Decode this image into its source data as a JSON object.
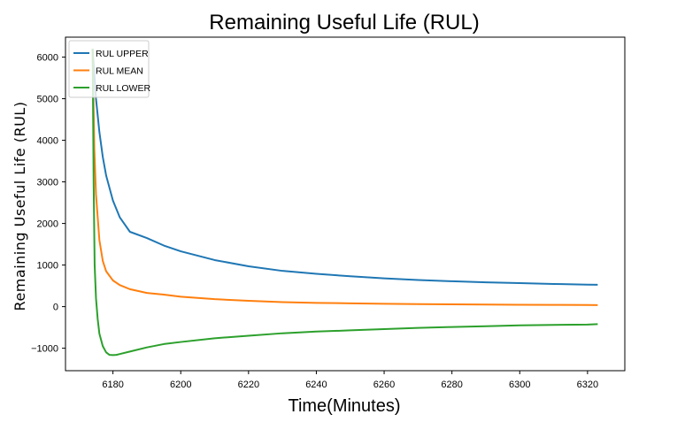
{
  "chart_data": {
    "type": "line",
    "title": "Remaining Useful Life (RUL)",
    "xlabel": "Time(Minutes)",
    "ylabel": "Remaining Useful Life (RUL)",
    "xlim": [
      6166,
      6331
    ],
    "ylim": [
      -1540,
      6480
    ],
    "xticks": [
      6180,
      6200,
      6220,
      6240,
      6260,
      6280,
      6300,
      6320
    ],
    "yticks": [
      -1000,
      0,
      1000,
      2000,
      3000,
      4000,
      5000,
      6000
    ],
    "grid": false,
    "legend_position": "top-left",
    "series": [
      {
        "name": "RUL UPPER",
        "color": "#1f77b4",
        "x": [
          6174,
          6175,
          6176,
          6177,
          6178,
          6180,
          6182,
          6185,
          6190,
          6195,
          6200,
          6210,
          6220,
          6230,
          6240,
          6250,
          6260,
          6270,
          6280,
          6290,
          6300,
          6310,
          6320,
          6323
        ],
        "y": [
          6200,
          5000,
          4200,
          3600,
          3150,
          2550,
          2150,
          1800,
          1650,
          1470,
          1330,
          1120,
          970,
          860,
          790,
          730,
          680,
          640,
          610,
          585,
          565,
          545,
          530,
          525
        ]
      },
      {
        "name": "RUL MEAN",
        "color": "#ff7f0e",
        "x": [
          6174,
          6174.5,
          6175,
          6176,
          6177,
          6178,
          6180,
          6182,
          6185,
          6190,
          6195,
          6200,
          6210,
          6220,
          6230,
          6240,
          6250,
          6260,
          6270,
          6280,
          6290,
          6300,
          6310,
          6320,
          6323
        ],
        "y": [
          6200,
          3800,
          2700,
          1600,
          1100,
          850,
          630,
          520,
          420,
          330,
          290,
          240,
          180,
          140,
          110,
          90,
          80,
          70,
          60,
          55,
          50,
          45,
          42,
          40,
          38
        ]
      },
      {
        "name": "RUL LOWER",
        "color": "#2ca02c",
        "x": [
          6174,
          6174.3,
          6174.6,
          6175,
          6175.5,
          6176,
          6177,
          6178,
          6179,
          6180,
          6181,
          6182,
          6185,
          6190,
          6195,
          6200,
          6210,
          6220,
          6230,
          6240,
          6250,
          6260,
          6270,
          6280,
          6290,
          6300,
          6310,
          6320,
          6323
        ],
        "y": [
          6200,
          3000,
          1000,
          200,
          -300,
          -650,
          -950,
          -1100,
          -1160,
          -1165,
          -1160,
          -1140,
          -1080,
          -980,
          -900,
          -850,
          -760,
          -700,
          -640,
          -600,
          -570,
          -540,
          -510,
          -490,
          -470,
          -450,
          -440,
          -430,
          -420
        ]
      }
    ]
  }
}
